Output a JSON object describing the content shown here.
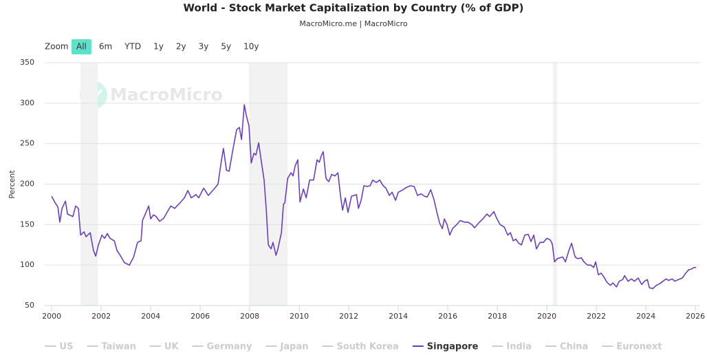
{
  "chart_data": {
    "type": "line",
    "title": "World - Stock Market Capitalization by Country (% of GDP)",
    "subtitle": "MacroMicro.me | MacroMicro",
    "watermark": "MacroMicro",
    "y_label": "Percent",
    "range_selector": {
      "label": "Zoom",
      "buttons": [
        "All",
        "6m",
        "YTD",
        "1y",
        "2y",
        "3y",
        "5y",
        "10y"
      ],
      "selected": 0
    },
    "grid": true,
    "xlim": [
      1999.72,
      2026.19
    ],
    "ylim": [
      50,
      350
    ],
    "xticks": [
      2000,
      2002,
      2004,
      2006,
      2008,
      2010,
      2012,
      2014,
      2016,
      2018,
      2020,
      2022,
      2024,
      2026
    ],
    "yticks": [
      50,
      100,
      150,
      200,
      250,
      300,
      350
    ],
    "bands": [
      [
        2001.17,
        2001.86
      ],
      [
        2007.97,
        2009.53
      ],
      [
        2020.25,
        2020.42
      ]
    ],
    "x": [
      2000.0,
      2000.14,
      2000.25,
      2000.33,
      2000.42,
      2000.56,
      2000.64,
      2000.86,
      2000.97,
      2001.08,
      2001.17,
      2001.31,
      2001.39,
      2001.56,
      2001.69,
      2001.78,
      2001.89,
      2002.03,
      2002.14,
      2002.25,
      2002.36,
      2002.53,
      2002.64,
      2002.75,
      2002.94,
      2003.14,
      2003.31,
      2003.47,
      2003.61,
      2003.67,
      2003.81,
      2003.92,
      2004.0,
      2004.11,
      2004.22,
      2004.36,
      2004.53,
      2004.64,
      2004.81,
      2004.97,
      2005.19,
      2005.36,
      2005.5,
      2005.64,
      2005.83,
      2005.94,
      2006.14,
      2006.33,
      2006.56,
      2006.72,
      2006.86,
      2006.94,
      2007.06,
      2007.17,
      2007.31,
      2007.47,
      2007.58,
      2007.67,
      2007.78,
      2007.86,
      2007.97,
      2008.06,
      2008.17,
      2008.25,
      2008.36,
      2008.47,
      2008.58,
      2008.67,
      2008.75,
      2008.86,
      2008.94,
      2009.06,
      2009.14,
      2009.28,
      2009.36,
      2009.42,
      2009.53,
      2009.67,
      2009.75,
      2009.83,
      2009.94,
      2010.03,
      2010.17,
      2010.28,
      2010.42,
      2010.58,
      2010.72,
      2010.81,
      2010.89,
      2010.97,
      2011.08,
      2011.19,
      2011.31,
      2011.44,
      2011.56,
      2011.67,
      2011.75,
      2011.86,
      2011.97,
      2012.11,
      2012.22,
      2012.31,
      2012.39,
      2012.5,
      2012.61,
      2012.75,
      2012.86,
      2012.97,
      2013.11,
      2013.25,
      2013.39,
      2013.5,
      2013.64,
      2013.75,
      2013.89,
      2014.0,
      2014.19,
      2014.33,
      2014.5,
      2014.64,
      2014.78,
      2014.92,
      2015.06,
      2015.17,
      2015.31,
      2015.44,
      2015.56,
      2015.67,
      2015.78,
      2015.86,
      2015.97,
      2016.08,
      2016.19,
      2016.36,
      2016.5,
      2016.67,
      2016.81,
      2016.97,
      2017.08,
      2017.25,
      2017.44,
      2017.58,
      2017.69,
      2017.86,
      2017.97,
      2018.11,
      2018.28,
      2018.42,
      2018.53,
      2018.64,
      2018.75,
      2018.86,
      2018.97,
      2019.11,
      2019.25,
      2019.36,
      2019.47,
      2019.58,
      2019.72,
      2019.86,
      2020.0,
      2020.14,
      2020.22,
      2020.31,
      2020.42,
      2020.53,
      2020.64,
      2020.75,
      2020.89,
      2021.0,
      2021.14,
      2021.25,
      2021.39,
      2021.5,
      2021.64,
      2021.78,
      2021.89,
      2021.97,
      2022.08,
      2022.19,
      2022.31,
      2022.42,
      2022.56,
      2022.67,
      2022.81,
      2022.92,
      2023.06,
      2023.14,
      2023.28,
      2023.42,
      2023.53,
      2023.69,
      2023.83,
      2023.94,
      2024.06,
      2024.14,
      2024.28,
      2024.42,
      2024.56,
      2024.69,
      2024.81,
      2024.92,
      2025.06,
      2025.17,
      2025.31,
      2025.47,
      2025.61,
      2025.72,
      2025.83,
      2025.94,
      2026.03
    ],
    "series": [
      {
        "name": "US",
        "visible": false
      },
      {
        "name": "Taiwan",
        "visible": false
      },
      {
        "name": "UK",
        "visible": false
      },
      {
        "name": "Germany",
        "visible": false
      },
      {
        "name": "Japan",
        "visible": false
      },
      {
        "name": "South Korea",
        "visible": false
      },
      {
        "name": "Singapore",
        "visible": true,
        "color": "#6a3db8",
        "values": [
          185,
          177,
          172,
          153,
          170,
          179,
          163,
          160,
          173,
          170,
          137,
          141,
          135,
          140,
          118,
          111,
          125,
          137,
          133,
          139,
          133,
          130,
          118,
          113,
          103,
          100,
          110,
          128,
          130,
          155,
          165,
          173,
          157,
          162,
          160,
          154,
          158,
          164,
          173,
          170,
          177,
          183,
          192,
          183,
          187,
          183,
          195,
          186,
          194,
          200,
          230,
          244,
          217,
          216,
          241,
          267,
          270,
          255,
          298,
          285,
          272,
          226,
          238,
          236,
          251,
          228,
          205,
          168,
          125,
          120,
          128,
          112,
          120,
          140,
          175,
          177,
          207,
          214,
          210,
          222,
          230,
          178,
          194,
          183,
          205,
          205,
          230,
          227,
          235,
          240,
          207,
          203,
          212,
          210,
          214,
          185,
          168,
          183,
          165,
          185,
          186,
          187,
          170,
          180,
          198,
          197,
          198,
          205,
          202,
          205,
          198,
          195,
          186,
          190,
          180,
          190,
          193,
          196,
          198,
          197,
          186,
          188,
          185,
          184,
          193,
          181,
          165,
          152,
          145,
          157,
          150,
          137,
          145,
          150,
          155,
          153,
          153,
          150,
          146,
          152,
          158,
          163,
          160,
          166,
          158,
          150,
          147,
          137,
          140,
          130,
          132,
          127,
          125,
          137,
          138,
          129,
          137,
          120,
          128,
          128,
          133,
          131,
          126,
          104,
          108,
          109,
          110,
          104,
          118,
          127,
          110,
          108,
          109,
          104,
          100,
          100,
          97,
          104,
          88,
          90,
          85,
          79,
          75,
          78,
          73,
          80,
          82,
          87,
          80,
          83,
          80,
          84,
          76,
          80,
          82,
          72,
          71,
          75,
          77,
          80,
          83,
          81,
          83,
          80,
          82,
          84,
          90,
          94,
          95,
          97,
          97
        ]
      },
      {
        "name": "India",
        "visible": false
      },
      {
        "name": "China",
        "visible": false
      },
      {
        "name": "Euronext",
        "visible": false
      }
    ]
  }
}
